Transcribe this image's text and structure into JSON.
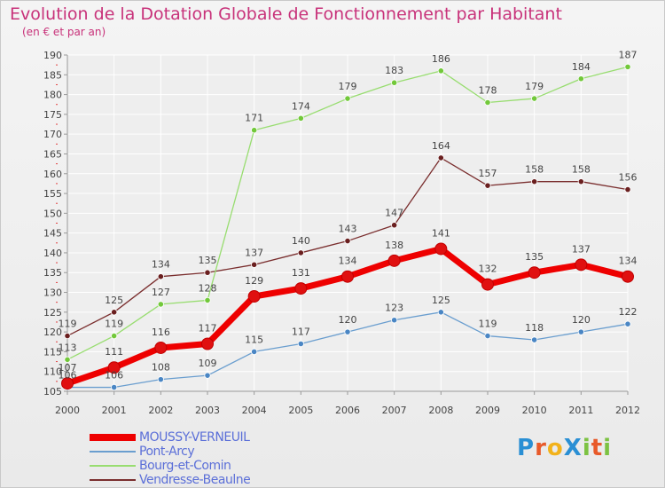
{
  "title": "Evolution de la Dotation Globale de Fonctionnement par Habitant",
  "subtitle": "(en € et par an)",
  "logo": {
    "text": "ProXiti",
    "letters": [
      {
        "ch": "P",
        "color": "#2a8fd4"
      },
      {
        "ch": "r",
        "color": "#e85a2a"
      },
      {
        "ch": "o",
        "color": "#f2b21b"
      },
      {
        "ch": "X",
        "color": "#2a8fd4"
      },
      {
        "ch": "i",
        "color": "#7cc242"
      },
      {
        "ch": "t",
        "color": "#e85a2a"
      },
      {
        "ch": "i",
        "color": "#7cc242"
      }
    ]
  },
  "chart_data": {
    "type": "line",
    "title": "Evolution de la Dotation Globale de Fonctionnement par Habitant",
    "subtitle": "(en € et par an)",
    "x": [
      "2000",
      "2001",
      "2002",
      "2003",
      "2004",
      "2005",
      "2006",
      "2007",
      "2008",
      "2009",
      "2010",
      "2011",
      "2012"
    ],
    "ylim": [
      105,
      190
    ],
    "yticks": [
      105,
      110,
      115,
      120,
      125,
      130,
      135,
      140,
      145,
      150,
      155,
      160,
      165,
      170,
      175,
      180,
      185,
      190
    ],
    "grid": true,
    "legend_position": "bottom-left",
    "series": [
      {
        "name": "MOUSSY-VERNEUIL",
        "color": "#ee0000",
        "marker": "#e01010",
        "width": 7,
        "values": [
          107,
          111,
          116,
          117,
          129,
          131,
          134,
          138,
          141,
          132,
          135,
          137,
          134
        ]
      },
      {
        "name": "Pont-Arcy",
        "color": "#6a9ecf",
        "marker": "#4a86c4",
        "width": 1.3,
        "values": [
          106,
          106,
          108,
          109,
          115,
          117,
          120,
          123,
          125,
          119,
          118,
          120,
          122
        ]
      },
      {
        "name": "Bourg-et-Comin",
        "color": "#98dd70",
        "marker": "#72c83a",
        "width": 1.3,
        "values": [
          113,
          119,
          127,
          128,
          171,
          174,
          179,
          183,
          186,
          178,
          179,
          184,
          187
        ]
      },
      {
        "name": "Vendresse-Beaulne",
        "color": "#7a2e2e",
        "marker": "#6a1f1f",
        "width": 1.3,
        "values": [
          119,
          125,
          134,
          135,
          137,
          140,
          143,
          147,
          164,
          157,
          158,
          158,
          156
        ]
      }
    ]
  }
}
